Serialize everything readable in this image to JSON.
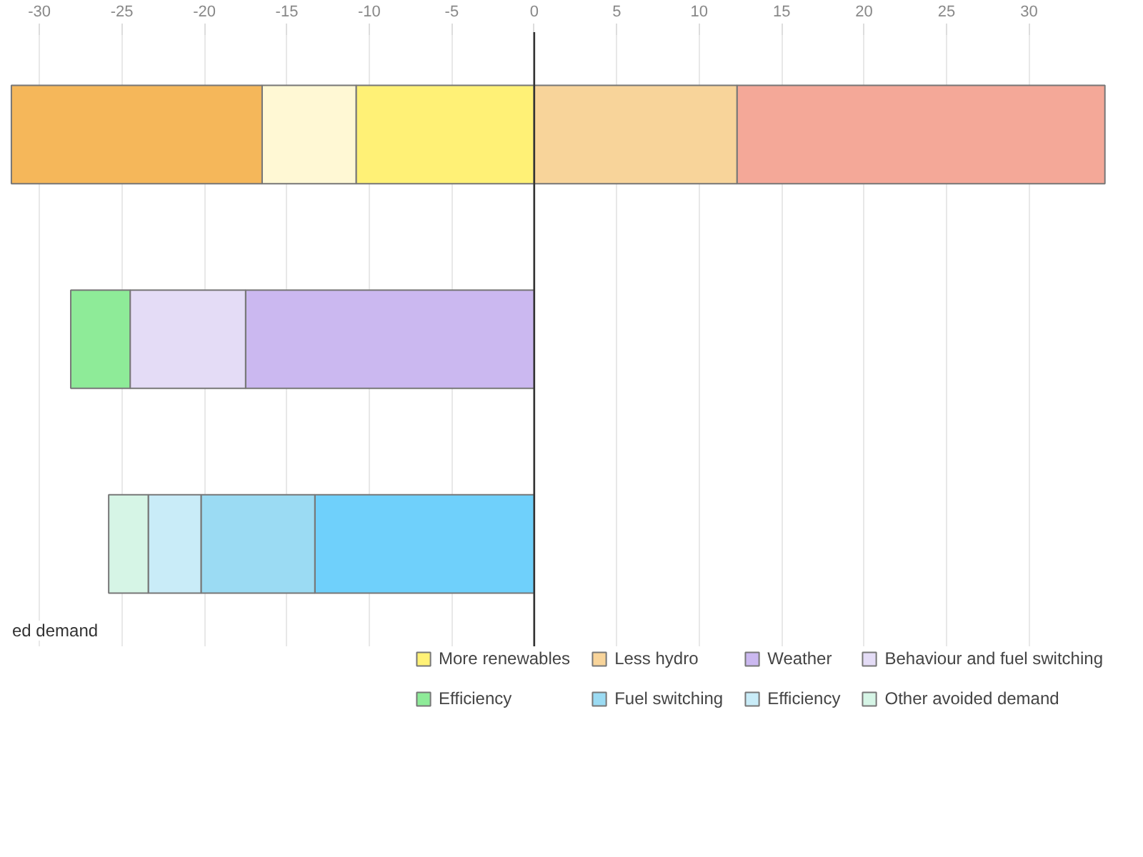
{
  "chart_data": {
    "type": "bar",
    "orientation": "horizontal",
    "stacked": true,
    "categories": [
      null,
      null,
      null
    ],
    "xlim": [
      -32,
      34.7
    ],
    "xticks": [
      -30,
      -25,
      -20,
      -15,
      -10,
      -5,
      0,
      5,
      10,
      15,
      20,
      25,
      30
    ],
    "grid": "x",
    "legend": "bottom",
    "tick_labels": "x",
    "series": [
      {
        "color": "#fff176",
        "name": "More renewables",
        "values": [
          -10.8,
          null,
          null
        ]
      },
      {
        "color": "#fff8d4",
        "values": [
          -5.7,
          null,
          null
        ]
      },
      {
        "color": "#f5b75a",
        "values": [
          -15.2,
          null,
          null
        ]
      },
      {
        "color": "#f8d49a",
        "name": "Less hydro",
        "values": [
          12.3,
          null,
          null
        ]
      },
      {
        "color": "#f4a898",
        "values": [
          22.3,
          null,
          null
        ]
      },
      {
        "color": "#cbb8f0",
        "name": "Weather",
        "values": [
          null,
          -17.5,
          null
        ]
      },
      {
        "color": "#e4dcf6",
        "name": "Behaviour and fuel switching",
        "values": [
          null,
          -7,
          null
        ]
      },
      {
        "color": "#8eeb98",
        "name": "Efficiency",
        "values": [
          null,
          -3.6,
          null
        ]
      },
      {
        "color": "#6fd0fb",
        "values": [
          null,
          null,
          -13.3
        ]
      },
      {
        "color": "#9bdbf3",
        "name": "Fuel switching",
        "values": [
          null,
          null,
          -6.9
        ]
      },
      {
        "color": "#c9ecf8",
        "name": "Efficiency",
        "values": [
          null,
          null,
          -3.2
        ]
      },
      {
        "color": "#d6f5e6",
        "name": "Other avoided demand",
        "values": [
          null,
          null,
          -2.4
        ]
      }
    ],
    "ref_lines": [
      {
        "axis": "x",
        "value": 0,
        "color": "#333333"
      }
    ],
    "annotations": [
      "ed demand"
    ]
  }
}
